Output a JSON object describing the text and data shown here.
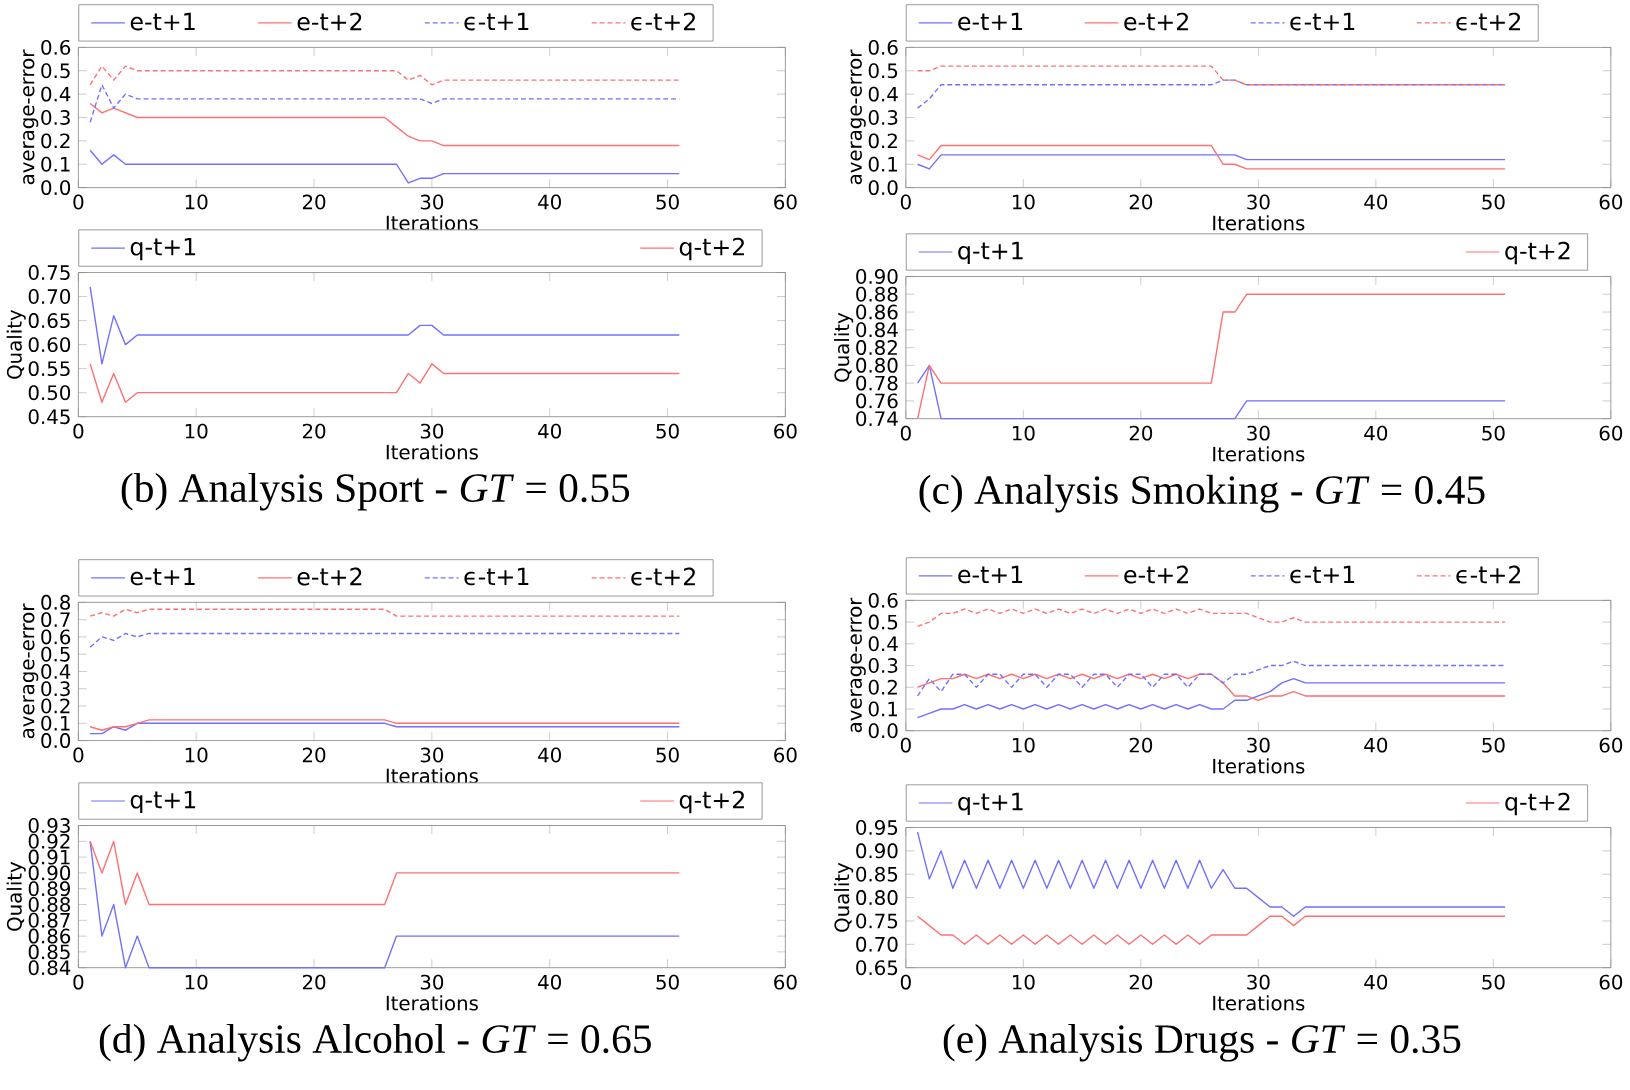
{
  "chart_data": [
    {
      "type": "line",
      "xlabel": "Iterations",
      "ylabel": "average-error",
      "xlim": [
        0,
        60
      ],
      "xticks": [
        0,
        10,
        20,
        30,
        40,
        50,
        60
      ],
      "ylim": [
        0,
        0.6
      ],
      "yticks": [
        {
          "value": 0,
          "label": "0.0"
        },
        {
          "value": 0.1,
          "label": "0.1"
        },
        {
          "value": 0.2,
          "label": "0.2"
        },
        {
          "value": 0.3,
          "label": "0.3"
        },
        {
          "value": 0.4,
          "label": "0.4"
        },
        {
          "value": 0.5,
          "label": "0.5"
        },
        {
          "value": 0.6,
          "label": "0.6"
        }
      ],
      "legend": "top",
      "series": [
        {
          "name": "e-t+1",
          "color": "#7070ff",
          "line_style": "solid",
          "x": [
            1,
            2,
            3,
            4,
            27,
            28,
            29,
            30,
            31,
            51
          ],
          "values": [
            0.16,
            0.1,
            0.14,
            0.1,
            0.1,
            0.02,
            0.04,
            0.04,
            0.06,
            0.06
          ]
        },
        {
          "name": "e-t+2",
          "color": "#ff7070",
          "line_style": "solid",
          "x": [
            1,
            2,
            3,
            5,
            26,
            27,
            28,
            29,
            30,
            31,
            51
          ],
          "values": [
            0.36,
            0.32,
            0.34,
            0.3,
            0.3,
            0.26,
            0.22,
            0.2,
            0.2,
            0.18,
            0.18
          ]
        },
        {
          "name": "ϵ-t+1",
          "color": "#7070ff",
          "line_style": "dashed",
          "x": [
            1,
            2,
            3,
            4,
            5,
            29,
            30,
            31,
            51
          ],
          "values": [
            0.28,
            0.44,
            0.34,
            0.4,
            0.38,
            0.38,
            0.36,
            0.38,
            0.38
          ]
        },
        {
          "name": "ϵ-t+2",
          "color": "#ff7070",
          "line_style": "dashed",
          "x": [
            1,
            2,
            3,
            4,
            5,
            27,
            28,
            29,
            30,
            31,
            51
          ],
          "values": [
            0.44,
            0.52,
            0.46,
            0.52,
            0.5,
            0.5,
            0.46,
            0.48,
            0.44,
            0.46,
            0.46
          ]
        }
      ]
    },
    {
      "type": "line",
      "xlabel": "Iterations",
      "ylabel": "Quality",
      "xlim": [
        0,
        60
      ],
      "xticks": [
        0,
        10,
        20,
        30,
        40,
        50,
        60
      ],
      "ylim": [
        0.45,
        0.75
      ],
      "yticks": [
        {
          "value": 0.45,
          "label": "0.45"
        },
        {
          "value": 0.5,
          "label": "0.50"
        },
        {
          "value": 0.55,
          "label": "0.55"
        },
        {
          "value": 0.6,
          "label": "0.60"
        },
        {
          "value": 0.65,
          "label": "0.65"
        },
        {
          "value": 0.7,
          "label": "0.70"
        },
        {
          "value": 0.75,
          "label": "0.75"
        }
      ],
      "legend": "top",
      "annotations": [
        "(b) Analysis Sport - *GT* = 0.55"
      ],
      "series": [
        {
          "name": "q-t+1",
          "color": "#7070ff",
          "line_style": "solid",
          "x": [
            1,
            2,
            3,
            4,
            5,
            28,
            29,
            30,
            31,
            51
          ],
          "values": [
            0.72,
            0.56,
            0.66,
            0.6,
            0.62,
            0.62,
            0.64,
            0.64,
            0.62,
            0.62
          ]
        },
        {
          "name": "q-t+2",
          "color": "#ff7070",
          "line_style": "solid",
          "x": [
            1,
            2,
            3,
            4,
            5,
            27,
            28,
            29,
            30,
            31,
            51
          ],
          "values": [
            0.56,
            0.48,
            0.54,
            0.48,
            0.5,
            0.5,
            0.54,
            0.52,
            0.56,
            0.54,
            0.54
          ]
        }
      ]
    },
    {
      "type": "line",
      "xlabel": "Iterations",
      "ylabel": "average-error",
      "xlim": [
        0,
        60
      ],
      "xticks": [
        0,
        10,
        20,
        30,
        40,
        50,
        60
      ],
      "ylim": [
        0,
        0.6
      ],
      "yticks": [
        {
          "value": 0,
          "label": "0.0"
        },
        {
          "value": 0.1,
          "label": "0.1"
        },
        {
          "value": 0.2,
          "label": "0.2"
        },
        {
          "value": 0.3,
          "label": "0.3"
        },
        {
          "value": 0.4,
          "label": "0.4"
        },
        {
          "value": 0.5,
          "label": "0.5"
        },
        {
          "value": 0.6,
          "label": "0.6"
        }
      ],
      "legend": "top",
      "series": [
        {
          "name": "e-t+1",
          "color": "#7070ff",
          "line_style": "solid",
          "x": [
            1,
            2,
            3,
            28,
            29,
            51
          ],
          "values": [
            0.1,
            0.08,
            0.14,
            0.14,
            0.12,
            0.12
          ]
        },
        {
          "name": "e-t+2",
          "color": "#ff7070",
          "line_style": "solid",
          "x": [
            1,
            2,
            3,
            26,
            27,
            28,
            29,
            51
          ],
          "values": [
            0.14,
            0.12,
            0.18,
            0.18,
            0.1,
            0.1,
            0.08,
            0.08
          ]
        },
        {
          "name": "ϵ-t+1",
          "color": "#7070ff",
          "line_style": "dashed",
          "x": [
            1,
            2,
            3,
            26,
            27,
            28,
            29,
            51
          ],
          "values": [
            0.34,
            0.38,
            0.44,
            0.44,
            0.46,
            0.46,
            0.44,
            0.44
          ]
        },
        {
          "name": "ϵ-t+2",
          "color": "#ff7070",
          "line_style": "dashed",
          "x": [
            1,
            2,
            3,
            26,
            27,
            28,
            29,
            51
          ],
          "values": [
            0.5,
            0.5,
            0.52,
            0.52,
            0.46,
            0.46,
            0.44,
            0.44
          ]
        }
      ]
    },
    {
      "type": "line",
      "xlabel": "Iterations",
      "ylabel": "Quality",
      "xlim": [
        0,
        60
      ],
      "xticks": [
        0,
        10,
        20,
        30,
        40,
        50,
        60
      ],
      "ylim": [
        0.74,
        0.9
      ],
      "yticks": [
        {
          "value": 0.74,
          "label": "0.74"
        },
        {
          "value": 0.76,
          "label": "0.76"
        },
        {
          "value": 0.78,
          "label": "0.78"
        },
        {
          "value": 0.8,
          "label": "0.80"
        },
        {
          "value": 0.82,
          "label": "0.82"
        },
        {
          "value": 0.84,
          "label": "0.84"
        },
        {
          "value": 0.86,
          "label": "0.86"
        },
        {
          "value": 0.88,
          "label": "0.88"
        },
        {
          "value": 0.9,
          "label": "0.90"
        }
      ],
      "legend": "top",
      "annotations": [
        "(c) Analysis Smoking - *GT* = 0.45"
      ],
      "series": [
        {
          "name": "q-t+1",
          "color": "#7070ff",
          "line_style": "solid",
          "x": [
            1,
            2,
            3,
            28,
            29,
            51
          ],
          "values": [
            0.78,
            0.8,
            0.74,
            0.74,
            0.76,
            0.76
          ]
        },
        {
          "name": "q-t+2",
          "color": "#ff7070",
          "line_style": "solid",
          "x": [
            1,
            2,
            3,
            26,
            27,
            28,
            29,
            51
          ],
          "values": [
            0.74,
            0.8,
            0.78,
            0.78,
            0.86,
            0.86,
            0.88,
            0.88
          ]
        }
      ]
    },
    {
      "type": "line",
      "xlabel": "Iterations",
      "ylabel": "average-error",
      "xlim": [
        0,
        60
      ],
      "xticks": [
        0,
        10,
        20,
        30,
        40,
        50,
        60
      ],
      "ylim": [
        0,
        0.8
      ],
      "yticks": [
        {
          "value": 0,
          "label": "0.0"
        },
        {
          "value": 0.1,
          "label": "0.1"
        },
        {
          "value": 0.2,
          "label": "0.2"
        },
        {
          "value": 0.3,
          "label": "0.3"
        },
        {
          "value": 0.4,
          "label": "0.4"
        },
        {
          "value": 0.5,
          "label": "0.5"
        },
        {
          "value": 0.6,
          "label": "0.6"
        },
        {
          "value": 0.7,
          "label": "0.7"
        },
        {
          "value": 0.8,
          "label": "0.8"
        }
      ],
      "legend": "top",
      "series": [
        {
          "name": "e-t+1",
          "color": "#7070ff",
          "line_style": "solid",
          "x": [
            1,
            2,
            3,
            4,
            5,
            26,
            27,
            51
          ],
          "values": [
            0.04,
            0.04,
            0.08,
            0.06,
            0.1,
            0.1,
            0.08,
            0.08
          ]
        },
        {
          "name": "e-t+2",
          "color": "#ff7070",
          "line_style": "solid",
          "x": [
            1,
            2,
            3,
            4,
            5,
            6,
            26,
            27,
            51
          ],
          "values": [
            0.08,
            0.06,
            0.08,
            0.08,
            0.1,
            0.12,
            0.12,
            0.1,
            0.1
          ]
        },
        {
          "name": "ϵ-t+1",
          "color": "#7070ff",
          "line_style": "dashed",
          "x": [
            1,
            2,
            3,
            4,
            5,
            6,
            51
          ],
          "values": [
            0.54,
            0.6,
            0.58,
            0.62,
            0.6,
            0.62,
            0.62
          ]
        },
        {
          "name": "ϵ-t+2",
          "color": "#ff7070",
          "line_style": "dashed",
          "x": [
            1,
            2,
            3,
            4,
            5,
            6,
            26,
            27,
            51
          ],
          "values": [
            0.72,
            0.74,
            0.72,
            0.76,
            0.74,
            0.76,
            0.76,
            0.72,
            0.72
          ]
        }
      ]
    },
    {
      "type": "line",
      "xlabel": "Iterations",
      "ylabel": "Quality",
      "xlim": [
        0,
        60
      ],
      "xticks": [
        0,
        10,
        20,
        30,
        40,
        50,
        60
      ],
      "ylim": [
        0.84,
        0.93
      ],
      "yticks": [
        {
          "value": 0.84,
          "label": "0.84"
        },
        {
          "value": 0.85,
          "label": "0.85"
        },
        {
          "value": 0.86,
          "label": "0.86"
        },
        {
          "value": 0.87,
          "label": "0.87"
        },
        {
          "value": 0.88,
          "label": "0.88"
        },
        {
          "value": 0.89,
          "label": "0.89"
        },
        {
          "value": 0.9,
          "label": "0.90"
        },
        {
          "value": 0.91,
          "label": "0.91"
        },
        {
          "value": 0.92,
          "label": "0.92"
        },
        {
          "value": 0.93,
          "label": "0.93"
        }
      ],
      "legend": "top",
      "annotations": [
        "(d) Analysis Alcohol - *GT* = 0.65"
      ],
      "series": [
        {
          "name": "q-t+1",
          "color": "#7070ff",
          "line_style": "solid",
          "x": [
            1,
            2,
            3,
            4,
            5,
            6,
            26,
            27,
            51
          ],
          "values": [
            0.92,
            0.86,
            0.88,
            0.84,
            0.86,
            0.84,
            0.84,
            0.86,
            0.86
          ]
        },
        {
          "name": "q-t+2",
          "color": "#ff7070",
          "line_style": "solid",
          "x": [
            1,
            2,
            3,
            4,
            5,
            6,
            26,
            27,
            51
          ],
          "values": [
            0.92,
            0.9,
            0.92,
            0.88,
            0.9,
            0.88,
            0.88,
            0.9,
            0.9
          ]
        }
      ]
    },
    {
      "type": "line",
      "xlabel": "Iterations",
      "ylabel": "average-error",
      "xlim": [
        0,
        60
      ],
      "xticks": [
        0,
        10,
        20,
        30,
        40,
        50,
        60
      ],
      "ylim": [
        0,
        0.6
      ],
      "yticks": [
        {
          "value": 0,
          "label": "0.0"
        },
        {
          "value": 0.1,
          "label": "0.1"
        },
        {
          "value": 0.2,
          "label": "0.2"
        },
        {
          "value": 0.3,
          "label": "0.3"
        },
        {
          "value": 0.4,
          "label": "0.4"
        },
        {
          "value": 0.5,
          "label": "0.5"
        },
        {
          "value": 0.6,
          "label": "0.6"
        }
      ],
      "legend": "top",
      "series": [
        {
          "name": "e-t+1",
          "color": "#7070ff",
          "line_style": "solid",
          "x": [
            1,
            2,
            3,
            4,
            5,
            6,
            7,
            8,
            9,
            10,
            11,
            12,
            13,
            14,
            15,
            16,
            17,
            18,
            19,
            20,
            21,
            22,
            23,
            24,
            25,
            26,
            27,
            28,
            29,
            30,
            31,
            32,
            33,
            34,
            51
          ],
          "values": [
            0.06,
            0.08,
            0.1,
            0.1,
            0.12,
            0.1,
            0.12,
            0.1,
            0.12,
            0.1,
            0.12,
            0.1,
            0.12,
            0.1,
            0.12,
            0.1,
            0.12,
            0.1,
            0.12,
            0.1,
            0.12,
            0.1,
            0.12,
            0.1,
            0.12,
            0.1,
            0.1,
            0.14,
            0.14,
            0.16,
            0.18,
            0.22,
            0.24,
            0.22,
            0.22
          ]
        },
        {
          "name": "e-t+2",
          "color": "#ff7070",
          "line_style": "solid",
          "x": [
            1,
            2,
            3,
            4,
            5,
            6,
            7,
            8,
            9,
            10,
            11,
            12,
            13,
            14,
            15,
            16,
            17,
            18,
            19,
            20,
            21,
            22,
            23,
            24,
            25,
            26,
            27,
            28,
            29,
            30,
            31,
            32,
            33,
            34,
            51
          ],
          "values": [
            0.2,
            0.22,
            0.24,
            0.24,
            0.26,
            0.24,
            0.26,
            0.24,
            0.26,
            0.24,
            0.26,
            0.24,
            0.26,
            0.24,
            0.26,
            0.24,
            0.26,
            0.24,
            0.26,
            0.24,
            0.26,
            0.24,
            0.26,
            0.24,
            0.26,
            0.26,
            0.22,
            0.16,
            0.16,
            0.14,
            0.16,
            0.16,
            0.18,
            0.16,
            0.16
          ]
        },
        {
          "name": "ϵ-t+1",
          "color": "#7070ff",
          "line_style": "dashed",
          "x": [
            1,
            2,
            3,
            4,
            5,
            6,
            7,
            8,
            9,
            10,
            11,
            12,
            13,
            14,
            15,
            16,
            17,
            18,
            19,
            20,
            21,
            22,
            23,
            24,
            25,
            26,
            27,
            28,
            29,
            30,
            31,
            32,
            33,
            34,
            51
          ],
          "values": [
            0.16,
            0.24,
            0.18,
            0.26,
            0.26,
            0.2,
            0.26,
            0.26,
            0.2,
            0.26,
            0.26,
            0.2,
            0.26,
            0.26,
            0.2,
            0.26,
            0.26,
            0.2,
            0.26,
            0.26,
            0.2,
            0.26,
            0.26,
            0.2,
            0.26,
            0.26,
            0.22,
            0.26,
            0.26,
            0.28,
            0.3,
            0.3,
            0.32,
            0.3,
            0.3
          ]
        },
        {
          "name": "ϵ-t+2",
          "color": "#ff7070",
          "line_style": "dashed",
          "x": [
            1,
            2,
            3,
            4,
            5,
            6,
            7,
            8,
            9,
            10,
            11,
            12,
            13,
            14,
            15,
            16,
            17,
            18,
            19,
            20,
            21,
            22,
            23,
            24,
            25,
            26,
            27,
            28,
            29,
            30,
            31,
            32,
            33,
            34,
            51
          ],
          "values": [
            0.48,
            0.5,
            0.54,
            0.54,
            0.56,
            0.54,
            0.56,
            0.54,
            0.56,
            0.54,
            0.56,
            0.54,
            0.56,
            0.54,
            0.56,
            0.54,
            0.56,
            0.54,
            0.56,
            0.54,
            0.56,
            0.54,
            0.56,
            0.54,
            0.56,
            0.54,
            0.54,
            0.54,
            0.54,
            0.52,
            0.5,
            0.5,
            0.52,
            0.5,
            0.5
          ]
        }
      ]
    },
    {
      "type": "line",
      "xlabel": "Iterations",
      "ylabel": "Quality",
      "xlim": [
        0,
        60
      ],
      "xticks": [
        0,
        10,
        20,
        30,
        40,
        50,
        60
      ],
      "ylim": [
        0.65,
        0.95
      ],
      "yticks": [
        {
          "value": 0.65,
          "label": "0.65"
        },
        {
          "value": 0.7,
          "label": "0.70"
        },
        {
          "value": 0.75,
          "label": "0.75"
        },
        {
          "value": 0.8,
          "label": "0.80"
        },
        {
          "value": 0.85,
          "label": "0.85"
        },
        {
          "value": 0.9,
          "label": "0.90"
        },
        {
          "value": 0.95,
          "label": "0.95"
        }
      ],
      "legend": "top",
      "annotations": [
        "(e) Analysis Drugs - *GT* = 0.35"
      ],
      "series": [
        {
          "name": "q-t+1",
          "color": "#7070ff",
          "line_style": "solid",
          "x": [
            1,
            2,
            3,
            4,
            5,
            6,
            7,
            8,
            9,
            10,
            11,
            12,
            13,
            14,
            15,
            16,
            17,
            18,
            19,
            20,
            21,
            22,
            23,
            24,
            25,
            26,
            27,
            28,
            29,
            30,
            31,
            32,
            33,
            34,
            51
          ],
          "values": [
            0.94,
            0.84,
            0.9,
            0.82,
            0.88,
            0.82,
            0.88,
            0.82,
            0.88,
            0.82,
            0.88,
            0.82,
            0.88,
            0.82,
            0.88,
            0.82,
            0.88,
            0.82,
            0.88,
            0.82,
            0.88,
            0.82,
            0.88,
            0.82,
            0.88,
            0.82,
            0.86,
            0.82,
            0.82,
            0.8,
            0.78,
            0.78,
            0.76,
            0.78,
            0.78
          ]
        },
        {
          "name": "q-t+2",
          "color": "#ff7070",
          "line_style": "solid",
          "x": [
            1,
            2,
            3,
            4,
            5,
            6,
            7,
            8,
            9,
            10,
            11,
            12,
            13,
            14,
            15,
            16,
            17,
            18,
            19,
            20,
            21,
            22,
            23,
            24,
            25,
            26,
            27,
            28,
            29,
            30,
            31,
            32,
            33,
            34,
            51
          ],
          "values": [
            0.76,
            0.74,
            0.72,
            0.72,
            0.7,
            0.72,
            0.7,
            0.72,
            0.7,
            0.72,
            0.7,
            0.72,
            0.7,
            0.72,
            0.7,
            0.72,
            0.7,
            0.72,
            0.7,
            0.72,
            0.7,
            0.72,
            0.7,
            0.72,
            0.7,
            0.72,
            0.72,
            0.72,
            0.72,
            0.74,
            0.76,
            0.76,
            0.74,
            0.76,
            0.76
          ]
        }
      ]
    }
  ]
}
